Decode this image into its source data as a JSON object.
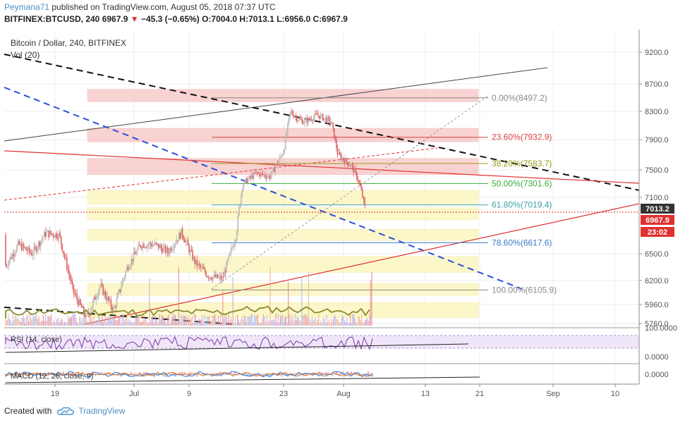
{
  "header": {
    "user": "Peymana71",
    "published": " published on TradingView.com, August 05, 2018 07:37 UTC",
    "symbol_line": "BITFINEX:BTCUSD, 240",
    "last": "6967.9",
    "change": "−45.3 (−0.65%)",
    "ohlc": "O:7004.0 H:7013.1 L:6956.0 C:6967.9"
  },
  "pane_labels": {
    "main": "Bitcoin / Dollar, 240, BITFINEX",
    "vol": "Vol (20)",
    "rsi": "RSI (14, close)",
    "macd": "MACD (12, 26, close, 9)"
  },
  "footer": {
    "created": "Created with",
    "brand": "TradingView"
  },
  "colors": {
    "grid": "#eeeeee",
    "axis": "#555555",
    "up": "#b8b8b8",
    "down": "#e06060",
    "fib_red": "#d94040",
    "fib_green": "#3aaa3a",
    "fib_olive": "#9a9a1a",
    "fib_teal": "#3aa0a0",
    "fib_blue": "#3a7ac8",
    "fib_grey": "#8a8a8a",
    "price_box": "#e03030",
    "price_box_dark": "#333333"
  },
  "chart_data": {
    "type": "line",
    "title": "Bitcoin / Dollar, 240, BITFINEX",
    "x_ticks": [
      "19",
      "Jul",
      "9",
      "23",
      "Aug",
      "13",
      "21",
      "Sep",
      "10"
    ],
    "y_ticks": [
      "9200.0",
      "8700.0",
      "8300.0",
      "7900.0",
      "7500.0",
      "7100.0",
      "6500.0",
      "6200.0",
      "5960.0",
      "5760.0"
    ],
    "ylim": [
      5700,
      9350
    ],
    "price_path": [
      {
        "x": "Jun 10",
        "y": 6700
      },
      {
        "x": "Jun 11",
        "y": 6550
      },
      {
        "x": "Jun 12",
        "y": 6350
      },
      {
        "x": "Jun 14",
        "y": 6600
      },
      {
        "x": "Jun 16",
        "y": 6500
      },
      {
        "x": "Jun 18",
        "y": 6720
      },
      {
        "x": "Jun 20",
        "y": 6700
      },
      {
        "x": "Jun 22",
        "y": 6100
      },
      {
        "x": "Jun 24",
        "y": 5820
      },
      {
        "x": "Jun 26",
        "y": 6150
      },
      {
        "x": "Jun 28",
        "y": 5900
      },
      {
        "x": "Jun 30",
        "y": 6350
      },
      {
        "x": "Jul 2",
        "y": 6600
      },
      {
        "x": "Jul 4",
        "y": 6600
      },
      {
        "x": "Jul 6",
        "y": 6520
      },
      {
        "x": "Jul 8",
        "y": 6730
      },
      {
        "x": "Jul 10",
        "y": 6400
      },
      {
        "x": "Jul 12",
        "y": 6250
      },
      {
        "x": "Jul 14",
        "y": 6220
      },
      {
        "x": "Jul 16",
        "y": 6700
      },
      {
        "x": "Jul 17",
        "y": 7300
      },
      {
        "x": "Jul 19",
        "y": 7450
      },
      {
        "x": "Jul 21",
        "y": 7400
      },
      {
        "x": "Jul 23",
        "y": 7750
      },
      {
        "x": "Jul 24",
        "y": 8300
      },
      {
        "x": "Jul 25",
        "y": 8200
      },
      {
        "x": "Jul 26",
        "y": 8150
      },
      {
        "x": "Jul 28",
        "y": 8250
      },
      {
        "x": "Jul 30",
        "y": 8150
      },
      {
        "x": "Jul 31",
        "y": 7700
      },
      {
        "x": "Aug 2",
        "y": 7550
      },
      {
        "x": "Aug 3",
        "y": 7350
      },
      {
        "x": "Aug 4",
        "y": 6967.9
      }
    ],
    "fib_levels": [
      {
        "label": "0.00%(8497.2)",
        "value": 8497.2,
        "color": "#8a8a8a"
      },
      {
        "label": "23.60%(7932.9)",
        "value": 7932.9,
        "color": "#d94040"
      },
      {
        "label": "38.20%(7583.7)",
        "value": 7583.7,
        "color": "#9a9a1a"
      },
      {
        "label": "50.00%(7301.6)",
        "value": 7301.6,
        "color": "#3aaa3a"
      },
      {
        "label": "61.80%(7019.4)",
        "value": 7019.4,
        "color": "#3aa0a0"
      },
      {
        "label": "78.60%(6617.6)",
        "value": 6617.6,
        "color": "#3a7ac8"
      },
      {
        "label": "100.00%(6105.9)",
        "value": 6105.9,
        "color": "#8a8a8a"
      }
    ],
    "price_labels": [
      "7013.2",
      "6967.9",
      "23:02"
    ],
    "rsi": {
      "ticks": [
        "100.0000",
        "0.0000"
      ]
    },
    "macd": {
      "ticks": [
        "0.0000"
      ]
    }
  }
}
